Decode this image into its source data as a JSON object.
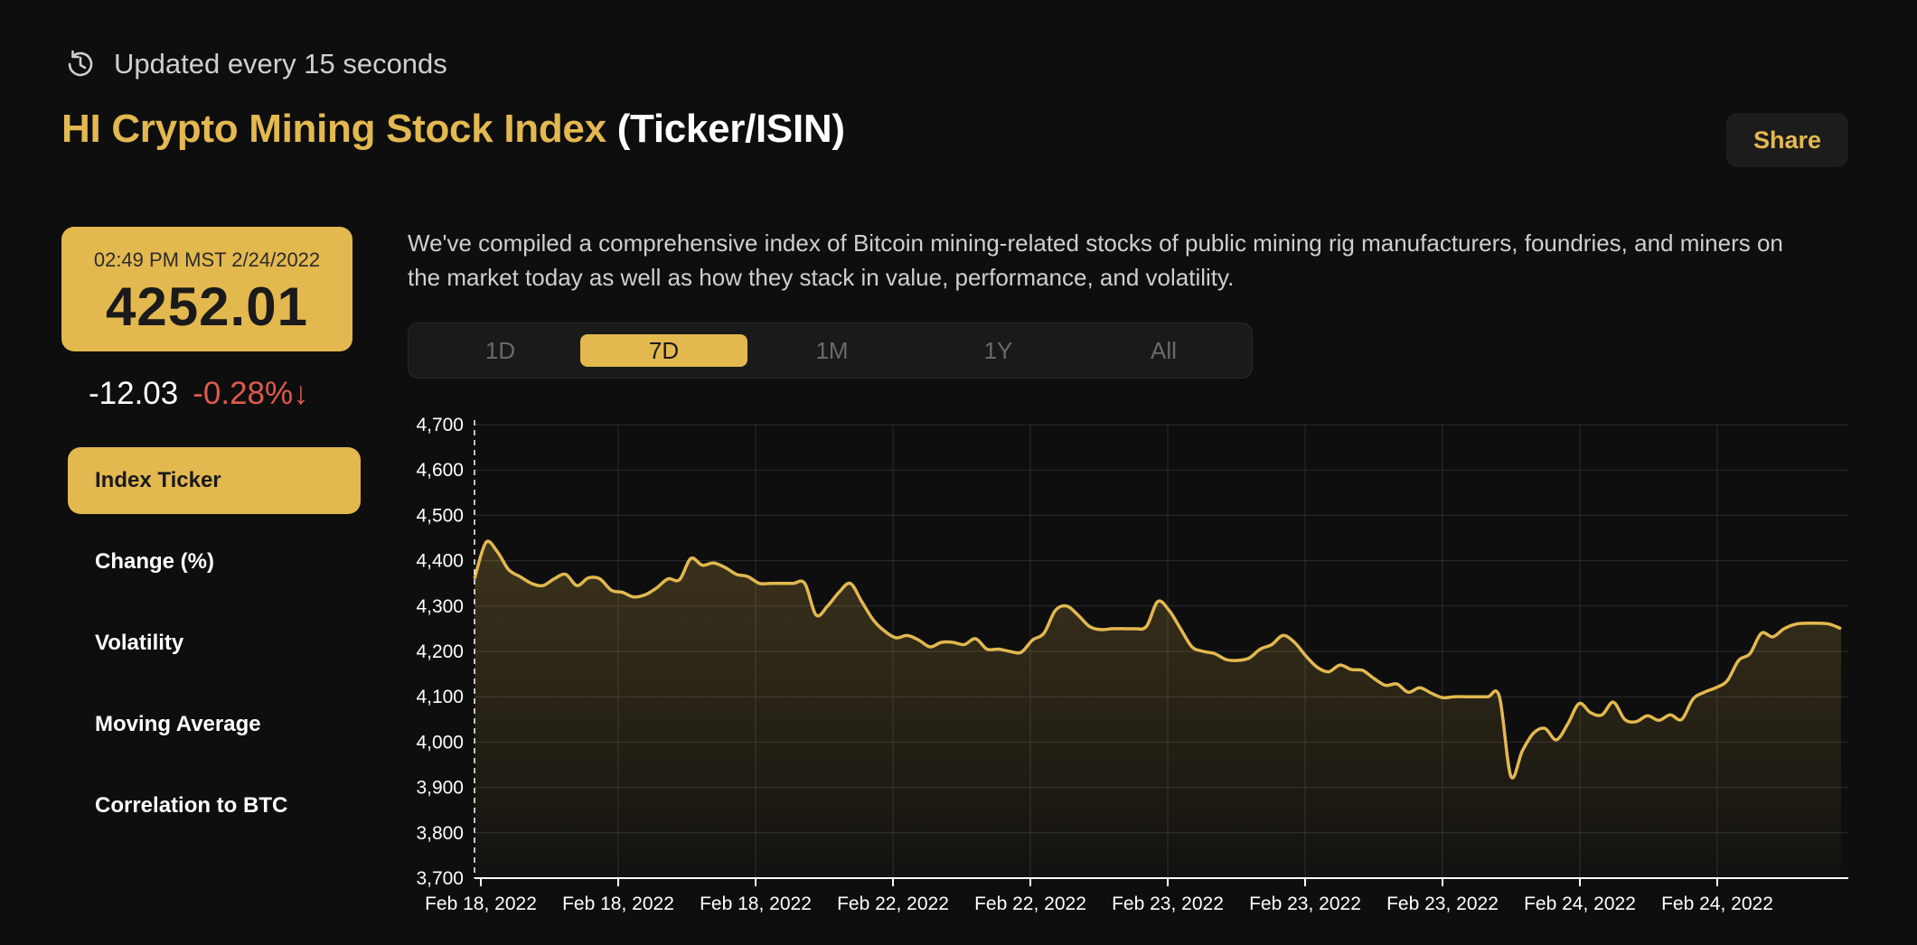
{
  "header": {
    "updated_text": "Updated every 15 seconds",
    "title_gold": "HI Crypto Mining Stock Index",
    "title_white": "(Ticker/ISIN)",
    "share_label": "Share"
  },
  "price": {
    "timestamp": "02:49 PM MST 2/24/2022",
    "value": "4252.01",
    "change_abs": "-12.03",
    "change_pct": "-0.28%↓"
  },
  "sidebar": {
    "items": [
      {
        "label": "Index Ticker"
      },
      {
        "label": "Change (%)"
      },
      {
        "label": "Volatility"
      },
      {
        "label": "Moving Average"
      },
      {
        "label": "Correlation to BTC"
      }
    ]
  },
  "description": "We've compiled a comprehensive index of Bitcoin mining-related stocks of public mining rig manufacturers, foundries, and miners on the market today as well as how they stack in value, performance, and volatility.",
  "ranges": [
    {
      "label": "1D"
    },
    {
      "label": "7D"
    },
    {
      "label": "1M"
    },
    {
      "label": "1Y"
    },
    {
      "label": "All"
    }
  ],
  "colors": {
    "accent": "#e3b84f",
    "background": "#0e0e0e",
    "negative": "#e05a4a"
  },
  "icons": {
    "updated": "refresh-clock-icon",
    "change_direction": "arrow-down-icon"
  },
  "chart_data": {
    "type": "area",
    "title": "",
    "xlabel": "",
    "ylabel": "",
    "ylim": [
      3700,
      4700
    ],
    "yticks": [
      "4,700",
      "4,600",
      "4,500",
      "4,400",
      "4,300",
      "4,200",
      "4,100",
      "4,000",
      "3,900",
      "3,800",
      "3,700"
    ],
    "xticks": [
      "Feb 18, 2022",
      "Feb 18, 2022",
      "Feb 18, 2022",
      "Feb 22, 2022",
      "Feb 22, 2022",
      "Feb 23, 2022",
      "Feb 23, 2022",
      "Feb 23, 2022",
      "Feb 24, 2022",
      "Feb 24, 2022"
    ],
    "grid": true,
    "series": [
      {
        "values": [
          4360,
          4440,
          4420,
          4380,
          4365,
          4350,
          4345,
          4360,
          4370,
          4345,
          4362,
          4360,
          4335,
          4330,
          4320,
          4325,
          4340,
          4360,
          4358,
          4405,
          4390,
          4395,
          4385,
          4370,
          4365,
          4350,
          4350,
          4350,
          4350,
          4350,
          4280,
          4300,
          4330,
          4350,
          4310,
          4270,
          4245,
          4230,
          4235,
          4225,
          4210,
          4220,
          4220,
          4215,
          4228,
          4205,
          4205,
          4200,
          4198,
          4225,
          4240,
          4290,
          4300,
          4280,
          4255,
          4248,
          4250,
          4250,
          4250,
          4255,
          4310,
          4290,
          4250,
          4210,
          4200,
          4195,
          4182,
          4180,
          4185,
          4205,
          4215,
          4235,
          4220,
          4190,
          4165,
          4155,
          4170,
          4160,
          4158,
          4140,
          4125,
          4128,
          4110,
          4120,
          4108,
          4098,
          4100,
          4100,
          4100,
          4100,
          4100,
          3925,
          3980,
          4020,
          4030,
          4005,
          4040,
          4085,
          4065,
          4060,
          4088,
          4050,
          4045,
          4058,
          4048,
          4060,
          4050,
          4095,
          4110,
          4120,
          4135,
          4180,
          4195,
          4240,
          4232,
          4250,
          4260,
          4262,
          4262,
          4260,
          4250
        ]
      }
    ]
  }
}
